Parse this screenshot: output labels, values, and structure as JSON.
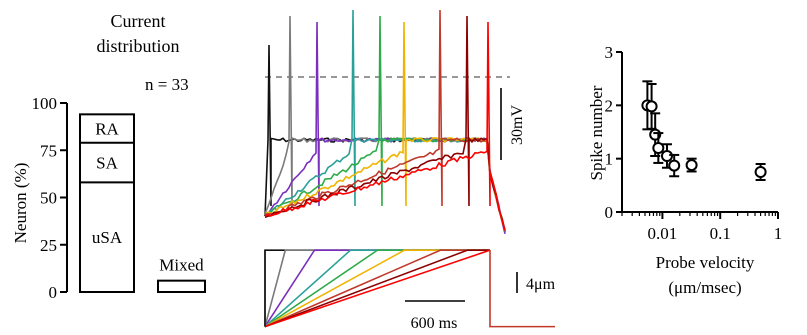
{
  "chart_data": [
    {
      "type": "bar",
      "title_lines": [
        "Current",
        "distribution"
      ],
      "annotation": "n = 33",
      "ylabel": "Neuron (%)",
      "ylim": [
        0,
        100
      ],
      "yticks": [
        0,
        25,
        50,
        75,
        100
      ],
      "stacked_segments": [
        {
          "label": "uSA",
          "from": 0,
          "to": 58
        },
        {
          "label": "SA",
          "from": 58,
          "to": 79
        },
        {
          "label": "RA",
          "from": 79,
          "to": 94
        }
      ],
      "bars": [
        {
          "category": "",
          "value": 94
        },
        {
          "category": "Mixed",
          "value": 6
        }
      ]
    },
    {
      "type": "line",
      "description_free": true,
      "voltage_scale_label": "30mV",
      "displacement_scale_label": "4μm",
      "time_scale_label": "600 ms",
      "time_scale_ms": 600,
      "ramp_displacement_um": 4,
      "series_colors": [
        "#111111",
        "#7a7a7a",
        "#7b2fbe",
        "#2aa198",
        "#2eaa4a",
        "#f0b400",
        "#c0392b",
        "#8b0000",
        "#ff0000"
      ],
      "ramp_end_fraction": [
        0.0,
        0.09,
        0.22,
        0.38,
        0.5,
        0.62,
        0.78,
        0.9,
        1.0
      ]
    },
    {
      "type": "scatter",
      "ylabel": "Spike number",
      "xlabel_lines": [
        "Probe velocity",
        "(μm/msec)"
      ],
      "xscale": "log",
      "xlim": [
        0.002,
        1
      ],
      "ylim": [
        0,
        3
      ],
      "xticks": [
        {
          "value": 0.01,
          "label": "0.01"
        },
        {
          "value": 0.1,
          "label": "0.1"
        },
        {
          "value": 1,
          "label": "1"
        }
      ],
      "yticks": [
        0,
        1,
        2,
        3
      ],
      "points": [
        {
          "x": 0.0055,
          "y": 2.0,
          "err": 0.45
        },
        {
          "x": 0.0065,
          "y": 1.98,
          "err": 0.42
        },
        {
          "x": 0.0075,
          "y": 1.45,
          "err": 0.4
        },
        {
          "x": 0.0085,
          "y": 1.2,
          "err": 0.28
        },
        {
          "x": 0.012,
          "y": 1.05,
          "err": 0.22
        },
        {
          "x": 0.016,
          "y": 0.87,
          "err": 0.2
        },
        {
          "x": 0.032,
          "y": 0.88,
          "err": 0.12
        },
        {
          "x": 0.5,
          "y": 0.75,
          "err": 0.15
        }
      ]
    }
  ]
}
